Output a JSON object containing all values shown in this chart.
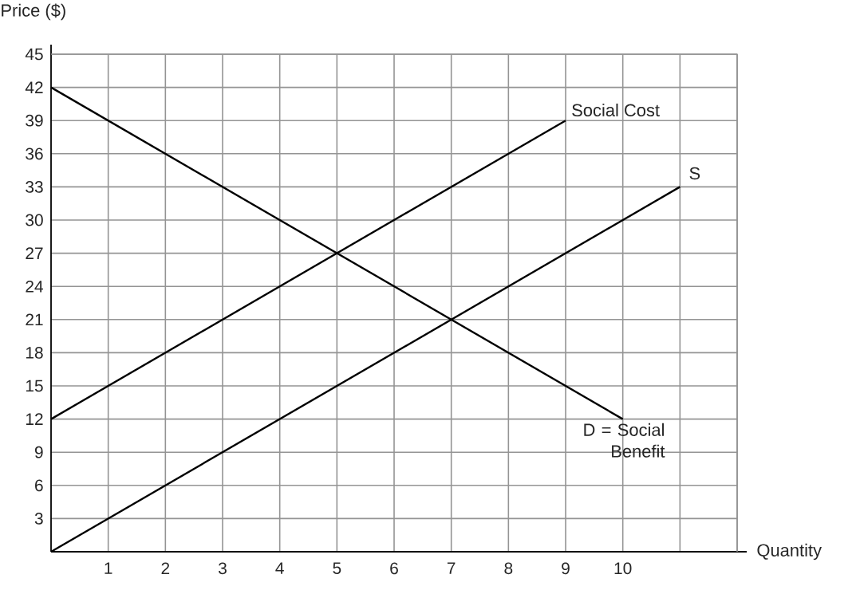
{
  "chart_data": {
    "type": "line",
    "xlabel": "Quantity",
    "ylabel": "Price ($)",
    "series": [
      {
        "name": "D = Social Benefit",
        "color": "#000000",
        "x": [
          0,
          10
        ],
        "values": [
          42,
          12
        ]
      },
      {
        "name": "Social Cost",
        "color": "#000000",
        "x": [
          0,
          9
        ],
        "values": [
          12,
          39
        ]
      },
      {
        "name": "S",
        "color": "#000000",
        "x": [
          0,
          11
        ],
        "values": [
          0,
          33
        ]
      }
    ],
    "xlim": [
      0,
      12
    ],
    "ylim": [
      0,
      45
    ],
    "xticks": [
      1,
      2,
      3,
      4,
      5,
      6,
      7,
      8,
      9,
      10,
      {
        "value": 11,
        "label": null
      },
      {
        "value": 12,
        "label": null
      }
    ],
    "yticks": [
      3,
      6,
      9,
      12,
      15,
      18,
      21,
      24,
      27,
      30,
      33,
      36,
      39,
      42,
      45
    ],
    "grid": true,
    "legend": false,
    "marker": "none",
    "line_style": "solid"
  }
}
